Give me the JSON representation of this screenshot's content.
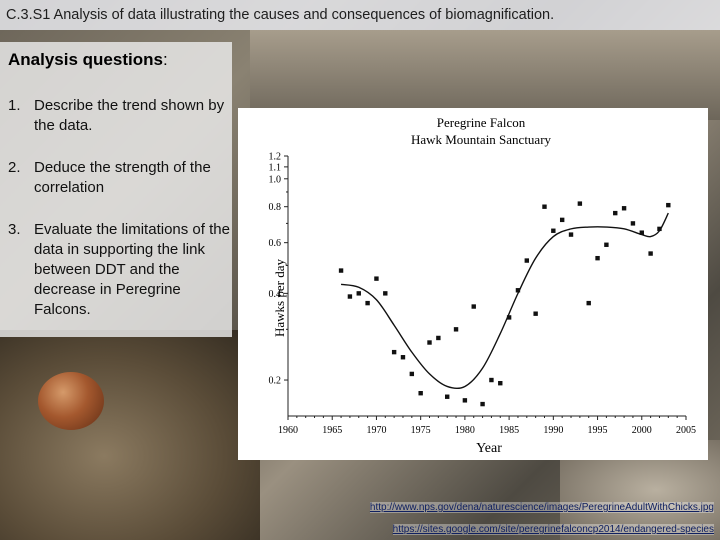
{
  "slide": {
    "title": "C.3.S1 Analysis of data illustrating the causes and consequences of biomagnification."
  },
  "panel": {
    "heading": "Analysis questions",
    "heading_suffix": ":",
    "questions": [
      {
        "num": "1.",
        "text": "Describe the trend shown by the data."
      },
      {
        "num": "2.",
        "text": "Deduce the strength of the correlation"
      },
      {
        "num": "3.",
        "text": "Evaluate the limitations of the data in supporting the link between DDT and the decrease in Peregrine Falcons."
      }
    ]
  },
  "links": [
    "http://www.nps.gov/dena/naturescience/images/PeregrineAdultWithChicks.jpg",
    "https://sites.google.com/site/peregrinefalconcp2014/endangered-species"
  ],
  "chart_data": {
    "type": "scatter",
    "title_line1": "Peregrine Falcon",
    "title_line2": "Hawk Mountain Sanctuary",
    "xlabel": "Year",
    "ylabel": "Hawks per day",
    "y_scale": "log",
    "xlim": [
      1960,
      2005
    ],
    "ylim": [
      0.15,
      1.1
    ],
    "x_ticks": [
      1960,
      1965,
      1970,
      1975,
      1980,
      1985,
      1990,
      1995,
      2000,
      2005
    ],
    "y_ticks": [
      0.2,
      0.4,
      0.6,
      0.8,
      1.0,
      1.1,
      1.2
    ],
    "y_tick_labels": [
      "0.2",
      "0.4",
      "0.6",
      "0.8",
      "1.0",
      "1.1",
      "1.2"
    ],
    "grid": false,
    "points": [
      {
        "x": 1966,
        "y": 0.48
      },
      {
        "x": 1967,
        "y": 0.39
      },
      {
        "x": 1968,
        "y": 0.4
      },
      {
        "x": 1969,
        "y": 0.37
      },
      {
        "x": 1970,
        "y": 0.45
      },
      {
        "x": 1971,
        "y": 0.4
      },
      {
        "x": 1972,
        "y": 0.25
      },
      {
        "x": 1973,
        "y": 0.24
      },
      {
        "x": 1974,
        "y": 0.21
      },
      {
        "x": 1975,
        "y": 0.18
      },
      {
        "x": 1976,
        "y": 0.27
      },
      {
        "x": 1977,
        "y": 0.28
      },
      {
        "x": 1978,
        "y": 0.175
      },
      {
        "x": 1979,
        "y": 0.3
      },
      {
        "x": 1980,
        "y": 0.17
      },
      {
        "x": 1981,
        "y": 0.36
      },
      {
        "x": 1982,
        "y": 0.165
      },
      {
        "x": 1983,
        "y": 0.2
      },
      {
        "x": 1984,
        "y": 0.195
      },
      {
        "x": 1985,
        "y": 0.33
      },
      {
        "x": 1986,
        "y": 0.41
      },
      {
        "x": 1987,
        "y": 0.52
      },
      {
        "x": 1988,
        "y": 0.34
      },
      {
        "x": 1989,
        "y": 0.8
      },
      {
        "x": 1990,
        "y": 0.66
      },
      {
        "x": 1991,
        "y": 0.72
      },
      {
        "x": 1992,
        "y": 0.64
      },
      {
        "x": 1993,
        "y": 0.82
      },
      {
        "x": 1994,
        "y": 0.37
      },
      {
        "x": 1995,
        "y": 0.53
      },
      {
        "x": 1996,
        "y": 0.59
      },
      {
        "x": 1997,
        "y": 0.76
      },
      {
        "x": 1998,
        "y": 0.79
      },
      {
        "x": 1999,
        "y": 0.7
      },
      {
        "x": 2000,
        "y": 0.65
      },
      {
        "x": 2001,
        "y": 0.55
      },
      {
        "x": 2002,
        "y": 0.67
      },
      {
        "x": 2003,
        "y": 0.81
      }
    ],
    "trend": [
      {
        "x": 1966,
        "y": 0.43
      },
      {
        "x": 1968,
        "y": 0.42
      },
      {
        "x": 1970,
        "y": 0.38
      },
      {
        "x": 1972,
        "y": 0.31
      },
      {
        "x": 1974,
        "y": 0.25
      },
      {
        "x": 1976,
        "y": 0.21
      },
      {
        "x": 1978,
        "y": 0.19
      },
      {
        "x": 1980,
        "y": 0.19
      },
      {
        "x": 1982,
        "y": 0.22
      },
      {
        "x": 1984,
        "y": 0.29
      },
      {
        "x": 1986,
        "y": 0.4
      },
      {
        "x": 1988,
        "y": 0.53
      },
      {
        "x": 1990,
        "y": 0.63
      },
      {
        "x": 1992,
        "y": 0.67
      },
      {
        "x": 1994,
        "y": 0.68
      },
      {
        "x": 1996,
        "y": 0.68
      },
      {
        "x": 1998,
        "y": 0.67
      },
      {
        "x": 2000,
        "y": 0.64
      },
      {
        "x": 2001,
        "y": 0.63
      },
      {
        "x": 2002,
        "y": 0.66
      },
      {
        "x": 2003,
        "y": 0.76
      }
    ]
  }
}
